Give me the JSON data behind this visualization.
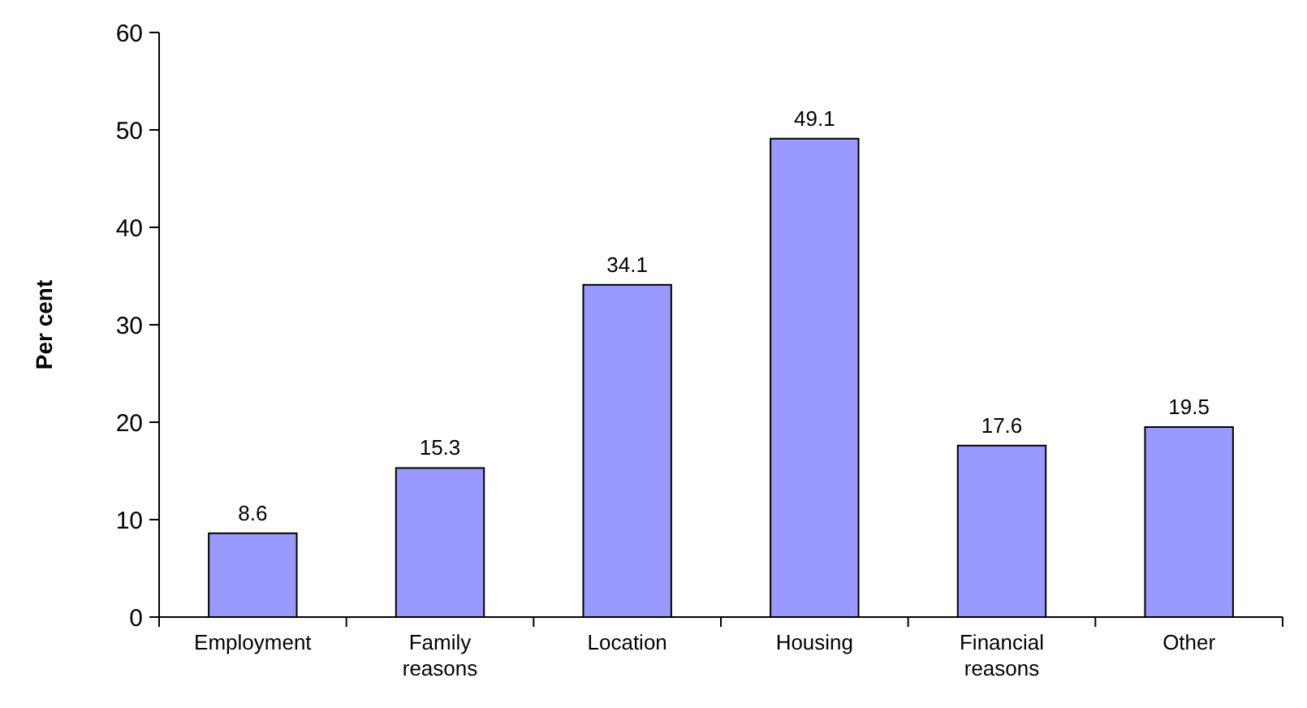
{
  "chart_data": {
    "type": "bar",
    "ylabel": "Per cent",
    "categories": [
      "Employment",
      "Family reasons",
      "Location",
      "Housing",
      "Financial reasons",
      "Other"
    ],
    "values": [
      8.6,
      15.3,
      34.1,
      49.1,
      17.6,
      19.5
    ],
    "color": "#9999ff",
    "ylim": [
      0,
      60
    ],
    "yticks": [
      0,
      10,
      20,
      30,
      40,
      50,
      60
    ],
    "grid": false,
    "data_labels": true
  }
}
